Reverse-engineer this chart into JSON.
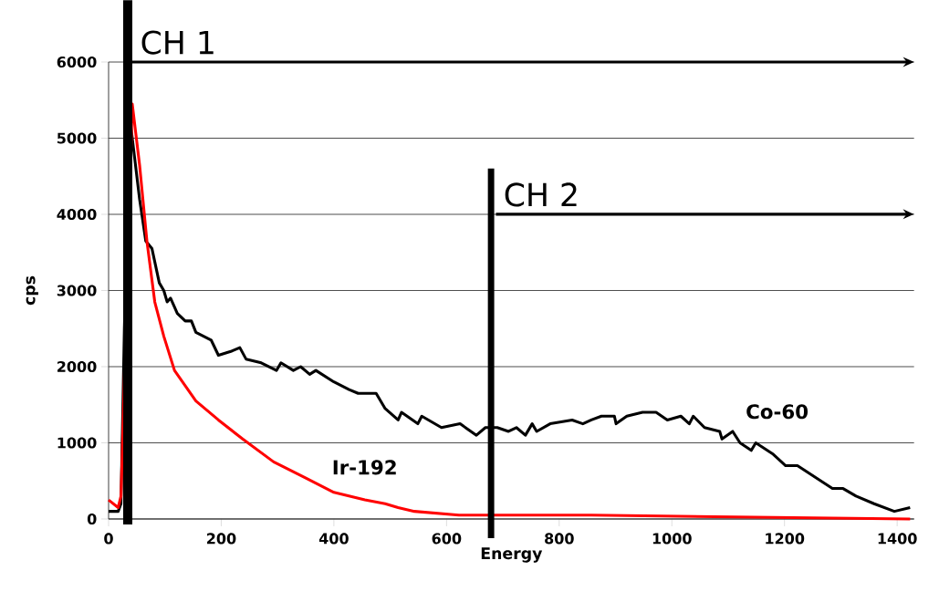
{
  "chart_data": {
    "type": "line",
    "xlabel": "Energy",
    "ylabel": "cps",
    "xlim": [
      0,
      1430
    ],
    "ylim": [
      0,
      6000
    ],
    "xticks": [
      0,
      200,
      400,
      600,
      800,
      1000,
      1200,
      1400
    ],
    "yticks": [
      0,
      1000,
      2000,
      3000,
      4000,
      5000,
      6000
    ],
    "grid": "y",
    "series": [
      {
        "name": "Co-60",
        "color": "#000000",
        "x": [
          0,
          17,
          22,
          28,
          38,
          55,
          66,
          77,
          90,
          98,
          104,
          110,
          122,
          136,
          147,
          155,
          182,
          195,
          217,
          233,
          244,
          271,
          298,
          306,
          328,
          341,
          357,
          368,
          400,
          427,
          443,
          475,
          491,
          514,
          520,
          549,
          556,
          591,
          624,
          653,
          669,
          690,
          710,
          724,
          740,
          752,
          760,
          784,
          823,
          842,
          857,
          875,
          898,
          901,
          920,
          948,
          972,
          992,
          1016,
          1031,
          1038,
          1058,
          1085,
          1089,
          1108,
          1121,
          1141,
          1149,
          1180,
          1202,
          1223,
          1254,
          1285,
          1304,
          1327,
          1359,
          1395,
          1423
        ],
        "values": [
          100,
          100,
          200,
          2500,
          5250,
          4200,
          3650,
          3550,
          3100,
          3000,
          2850,
          2900,
          2700,
          2600,
          2600,
          2450,
          2350,
          2150,
          2200,
          2250,
          2100,
          2050,
          1950,
          2050,
          1950,
          2000,
          1900,
          1950,
          1800,
          1700,
          1650,
          1650,
          1450,
          1300,
          1400,
          1250,
          1350,
          1200,
          1250,
          1100,
          1200,
          1200,
          1150,
          1200,
          1100,
          1250,
          1150,
          1250,
          1300,
          1250,
          1300,
          1350,
          1350,
          1250,
          1350,
          1400,
          1400,
          1300,
          1350,
          1250,
          1350,
          1200,
          1150,
          1050,
          1150,
          1000,
          900,
          1000,
          850,
          700,
          700,
          550,
          400,
          400,
          300,
          200,
          100,
          150
        ]
      },
      {
        "name": "Ir-192",
        "color": "#ff0000",
        "x": [
          0,
          17,
          22,
          33,
          42,
          55,
          68,
          82,
          98,
          117,
          136,
          155,
          195,
          238,
          293,
          347,
          400,
          455,
          491,
          514,
          543,
          622,
          700,
          857,
          1423
        ],
        "values": [
          250,
          150,
          300,
          null,
          5450,
          4650,
          3650,
          2850,
          2400,
          1950,
          1750,
          1550,
          1300,
          1050,
          750,
          550,
          350,
          250,
          200,
          150,
          100,
          50,
          50,
          50,
          0
        ]
      }
    ],
    "ref_lines": [
      {
        "axis": "x",
        "value": 34,
        "label": "CH 1"
      },
      {
        "axis": "x",
        "value": 679,
        "label": "CH 2"
      }
    ]
  }
}
